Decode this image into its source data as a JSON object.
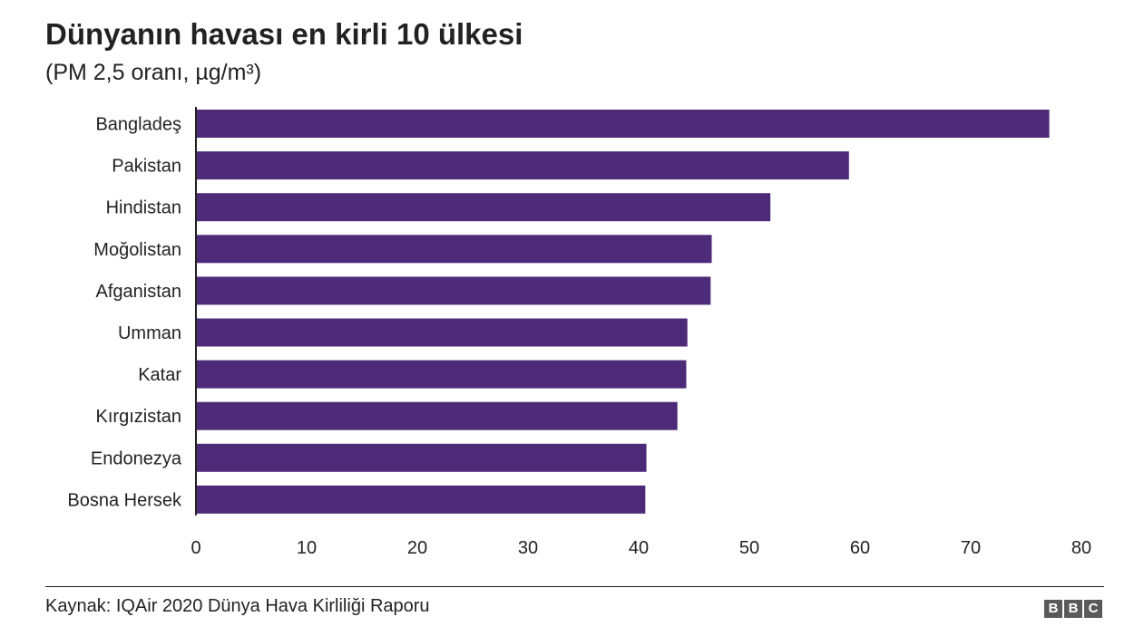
{
  "chart_data": {
    "type": "bar",
    "orientation": "horizontal",
    "title": "Dünyanın havası en kirli 10 ülkesi",
    "subtitle": "(PM 2,5 oranı, µg/m³)",
    "categories": [
      "Bangladeş",
      "Pakistan",
      "Hindistan",
      "Moğolistan",
      "Afganistan",
      "Umman",
      "Katar",
      "Kırgızistan",
      "Endonezya",
      "Bosna Hersek"
    ],
    "values": [
      77.1,
      59.0,
      51.9,
      46.6,
      46.5,
      44.4,
      44.3,
      43.5,
      40.7,
      40.6
    ],
    "xlim": [
      0,
      80
    ],
    "xticks": [
      0,
      10,
      20,
      30,
      40,
      50,
      60,
      70,
      80
    ],
    "bar_color": "#4e2b78",
    "grid": false
  },
  "footer": {
    "source": "Kaynak: IQAir 2020 Dünya Hava Kirliliği Raporu",
    "logo": [
      "B",
      "B",
      "C"
    ]
  }
}
